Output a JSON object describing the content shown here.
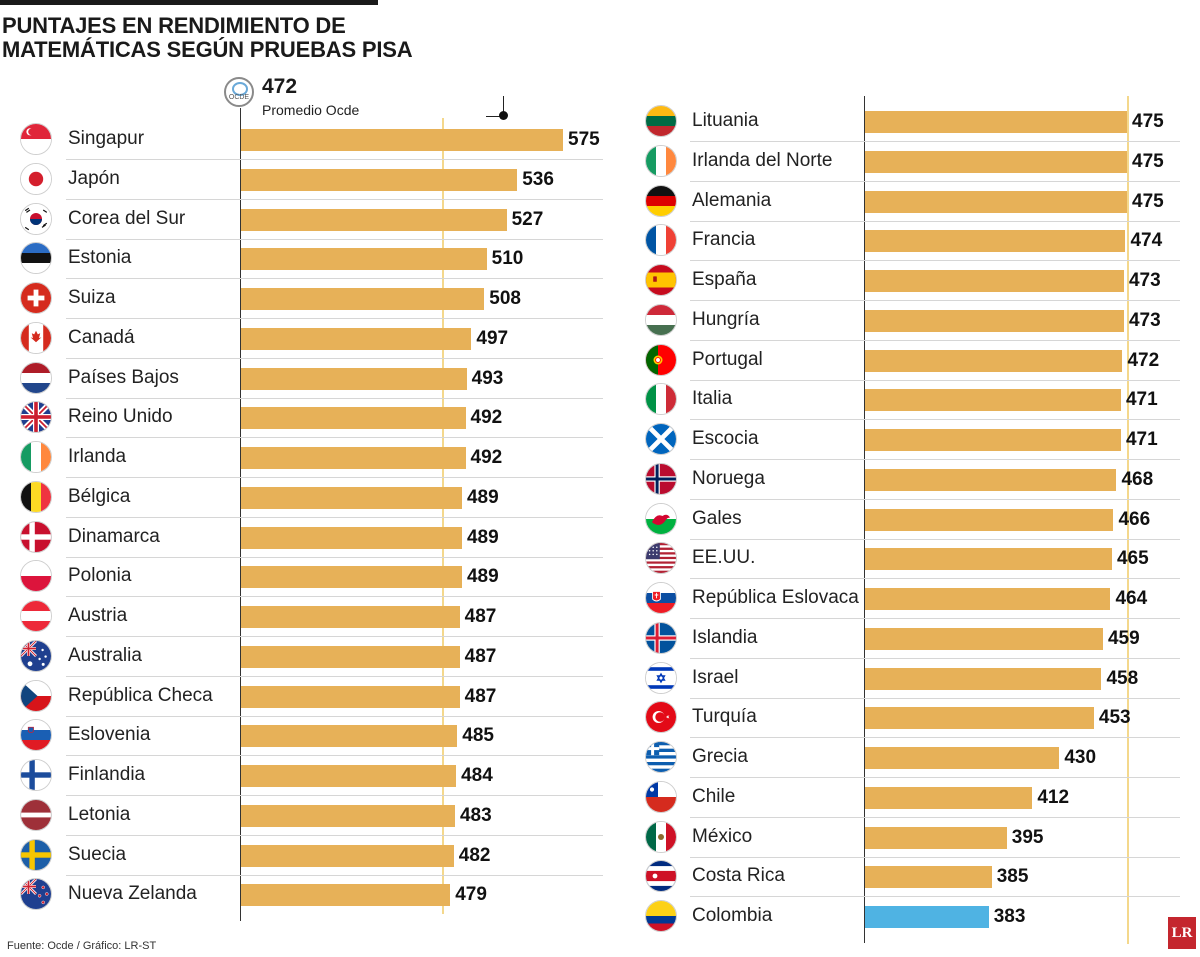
{
  "title_lines": [
    "PUNTAJES EN RENDIMIENTO DE",
    "MATEMÁTICAS SEGÚN PRUEBAS PISA"
  ],
  "average": {
    "value": "472",
    "label": "Promedio Ocde",
    "logo_text": "OCDE"
  },
  "source": "Fuente: Ocde / Gráfico: LR-ST",
  "logo": "LR",
  "colors": {
    "bar": "#e7b158",
    "highlight": "#4fb3e3",
    "average_line": "#f4d88c"
  },
  "chart_data": [
    {
      "type": "bar",
      "orientation": "horizontal",
      "title": "PUNTAJES EN RENDIMIENTO DE MATEMÁTICAS SEGÚN PRUEBAS PISA",
      "xlim": [
        300,
        575
      ],
      "reference_line": {
        "value": 472,
        "label": "Promedio Ocde"
      },
      "categories": [
        "Singapur",
        "Japón",
        "Corea del Sur",
        "Estonia",
        "Suiza",
        "Canadá",
        "Países Bajos",
        "Reino Unido",
        "Irlanda",
        "Bélgica",
        "Dinamarca",
        "Polonia",
        "Austria",
        "Australia",
        "República Checa",
        "Eslovenia",
        "Finlandia",
        "Letonia",
        "Suecia",
        "Nueva Zelanda"
      ],
      "values": [
        575,
        536,
        527,
        510,
        508,
        497,
        493,
        492,
        492,
        489,
        489,
        489,
        487,
        487,
        487,
        485,
        484,
        483,
        482,
        479
      ],
      "flags": [
        "singapore-flag-icon",
        "japan-flag-icon",
        "south-korea-flag-icon",
        "estonia-flag-icon",
        "switzerland-flag-icon",
        "canada-flag-icon",
        "netherlands-flag-icon",
        "uk-flag-icon",
        "ireland-flag-icon",
        "belgium-flag-icon",
        "denmark-flag-icon",
        "poland-flag-icon",
        "austria-flag-icon",
        "australia-flag-icon",
        "czech-flag-icon",
        "slovenia-flag-icon",
        "finland-flag-icon",
        "latvia-flag-icon",
        "sweden-flag-icon",
        "new-zealand-flag-icon"
      ]
    },
    {
      "type": "bar",
      "orientation": "horizontal",
      "xlim": [
        300,
        475
      ],
      "reference_line": {
        "value": 472,
        "label": "Promedio Ocde"
      },
      "categories": [
        "Lituania",
        "Irlanda del Norte",
        "Alemania",
        "Francia",
        "España",
        "Hungría",
        "Portugal",
        "Italia",
        "Escocia",
        "Noruega",
        "Gales",
        "EE.UU.",
        "República Eslovaca",
        "Islandia",
        "Israel",
        "Turquía",
        "Grecia",
        "Chile",
        "México",
        "Costa Rica",
        "Colombia"
      ],
      "values": [
        475,
        475,
        475,
        474,
        473,
        473,
        472,
        471,
        471,
        468,
        466,
        465,
        464,
        459,
        458,
        453,
        430,
        412,
        395,
        385,
        383
      ],
      "highlight": "Colombia",
      "flags": [
        "lithuania-flag-icon",
        "northern-ireland-flag-icon",
        "germany-flag-icon",
        "france-flag-icon",
        "spain-flag-icon",
        "hungary-flag-icon",
        "portugal-flag-icon",
        "italy-flag-icon",
        "scotland-flag-icon",
        "norway-flag-icon",
        "wales-flag-icon",
        "usa-flag-icon",
        "slovakia-flag-icon",
        "iceland-flag-icon",
        "israel-flag-icon",
        "turkey-flag-icon",
        "greece-flag-icon",
        "chile-flag-icon",
        "mexico-flag-icon",
        "costa-rica-flag-icon",
        "colombia-flag-icon"
      ]
    }
  ]
}
